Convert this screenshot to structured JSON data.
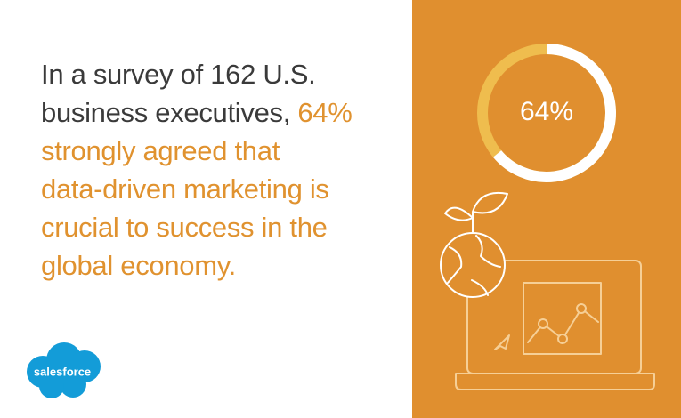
{
  "headline": {
    "lines": [
      [
        {
          "text": "In a survey of 162 U.S.",
          "style": "plain"
        }
      ],
      [
        {
          "text": "business executives, ",
          "style": "plain"
        },
        {
          "text": "64%",
          "style": "highlight"
        }
      ],
      [
        {
          "text": "strongly agreed that",
          "style": "highlight"
        }
      ],
      [
        {
          "text": "data-driven marketing is",
          "style": "highlight"
        }
      ],
      [
        {
          "text": "crucial to success in the",
          "style": "highlight"
        }
      ],
      [
        {
          "text": "global economy.",
          "style": "highlight"
        }
      ]
    ]
  },
  "chart_data": {
    "type": "donut",
    "values": [
      64
    ],
    "value_labels": [
      "64%"
    ],
    "color": "#ffffff",
    "track_color": "#efbd4e"
  },
  "logo": "salesforce"
}
